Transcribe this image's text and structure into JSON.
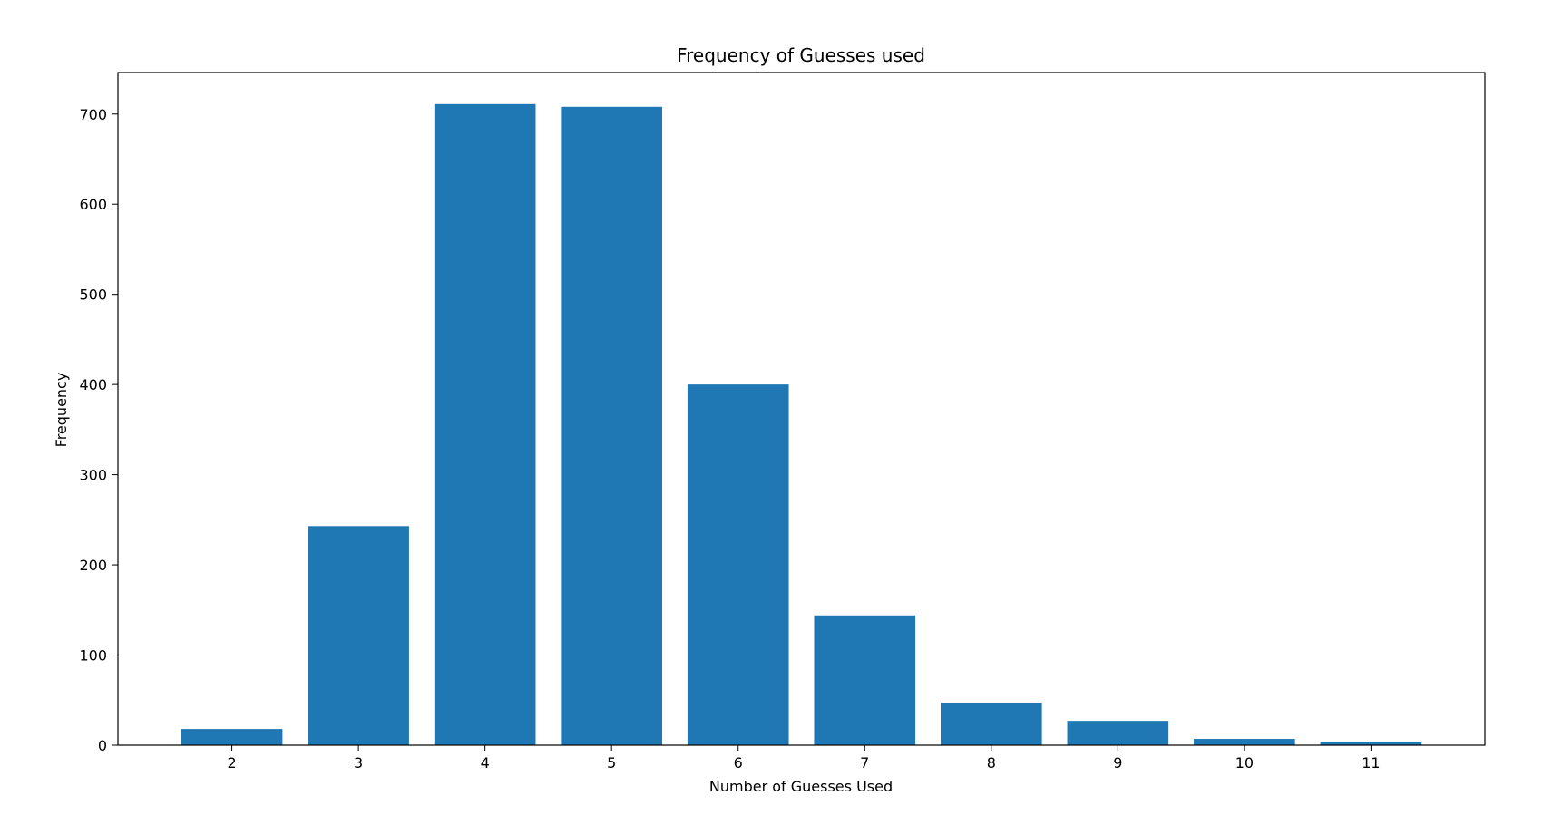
{
  "chart_data": {
    "type": "bar",
    "title": "Frequency of Guesses used",
    "xlabel": "Number of Guesses Used",
    "ylabel": "Frequency",
    "categories": [
      "2",
      "3",
      "4",
      "5",
      "6",
      "7",
      "8",
      "9",
      "10",
      "11"
    ],
    "x": [
      2,
      3,
      4,
      5,
      6,
      7,
      8,
      9,
      10,
      11
    ],
    "values": [
      18,
      243,
      711,
      708,
      400,
      144,
      47,
      27,
      7,
      3
    ],
    "xlim": [
      1.1,
      11.9
    ],
    "ylim": [
      0,
      746
    ],
    "yticks": [
      0,
      100,
      200,
      300,
      400,
      500,
      600,
      700
    ],
    "bar_color": "#1f77b4",
    "grid": false,
    "legend": "none"
  }
}
